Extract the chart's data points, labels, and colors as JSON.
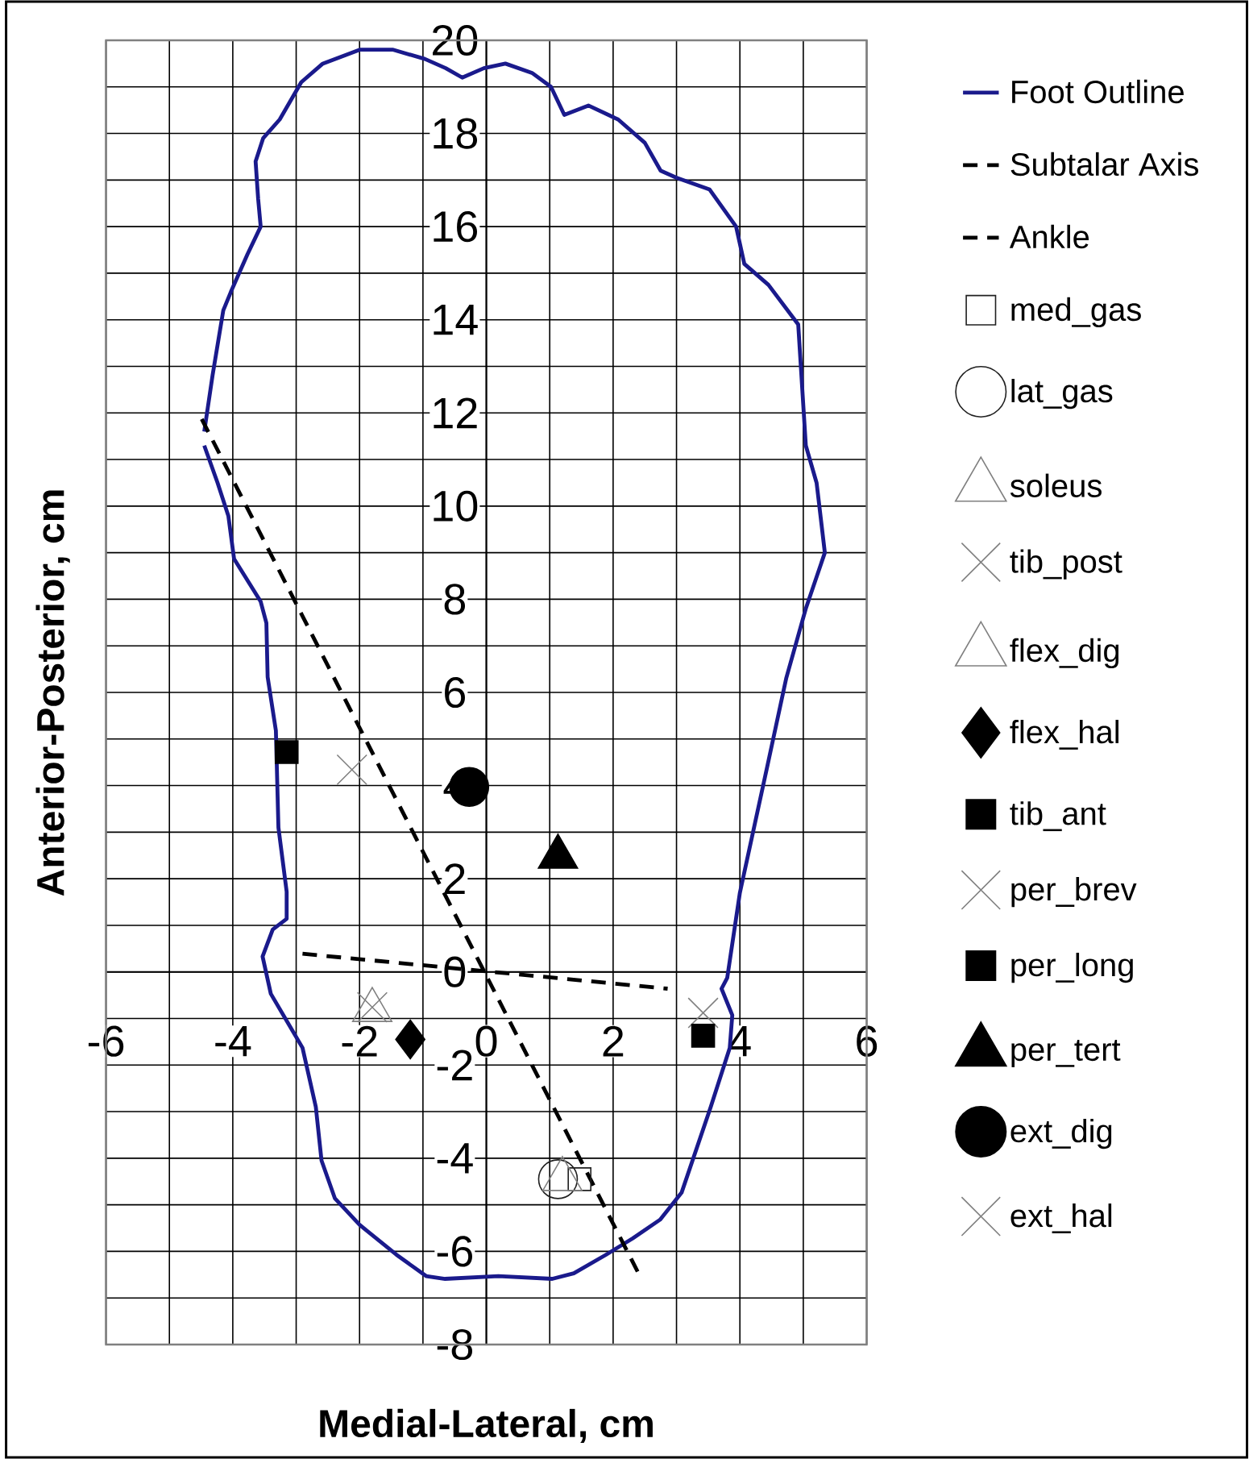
{
  "chart_data": {
    "type": "scatter",
    "xlabel": "Medial-Lateral, cm",
    "ylabel": "Anterior-Posterior, cm",
    "xlim": [
      -6,
      6
    ],
    "ylim": [
      -8,
      20
    ],
    "xticks": [
      -6,
      {
        "value": -5,
        "label": null
      },
      -4,
      {
        "value": -3,
        "label": null
      },
      -2,
      {
        "value": -1,
        "label": null
      },
      0,
      {
        "value": 1,
        "label": null
      },
      2,
      {
        "value": 3,
        "label": null
      },
      4,
      {
        "value": 5,
        "label": null
      },
      6
    ],
    "yticks": [
      -8,
      {
        "value": -7,
        "label": null
      },
      -6,
      {
        "value": -5,
        "label": null
      },
      -4,
      {
        "value": -3,
        "label": null
      },
      -2,
      {
        "value": -1,
        "label": null
      },
      0,
      {
        "value": 1,
        "label": null
      },
      2,
      {
        "value": 3,
        "label": null
      },
      4,
      {
        "value": 5,
        "label": null
      },
      6,
      {
        "value": 7,
        "label": null
      },
      8,
      {
        "value": 9,
        "label": null
      },
      10,
      {
        "value": 11,
        "label": null
      },
      12,
      {
        "value": 13,
        "label": null
      },
      14,
      {
        "value": 15,
        "label": null
      },
      16,
      {
        "value": 17,
        "label": null
      },
      18,
      {
        "value": 19,
        "label": null
      },
      20
    ],
    "grid": true,
    "legend": "right",
    "series": [
      {
        "name": "Foot Outline",
        "type": "line",
        "color": "#1a1a8c",
        "line_style": "solid",
        "marker": "none",
        "x": [
          -4.45,
          -4.32,
          -4.15,
          -4.03,
          -3.77,
          -3.56,
          -3.6,
          -3.64,
          -3.52,
          -3.26,
          -2.92,
          -2.58,
          -1.99,
          -1.48,
          -0.97,
          -0.64,
          -0.38,
          -0.04,
          0.3,
          0.72,
          1.02,
          1.23,
          1.61,
          2.08,
          2.5,
          2.75,
          3.0,
          3.52,
          3.94,
          4.07,
          4.45,
          4.92,
          5.04,
          5.21,
          5.34,
          5.04,
          4.73,
          4.43,
          4.0,
          3.8,
          3.71,
          3.88,
          3.84,
          3.54,
          3.08,
          2.74,
          2.31,
          1.89,
          1.38,
          1.04,
          0.19,
          -0.65,
          -0.95,
          -1.42,
          -2.0,
          -2.39,
          -2.6,
          -2.69,
          -2.9,
          -3.4,
          -3.53,
          -3.37,
          -3.15,
          -3.15,
          -3.28,
          -3.32,
          -3.45,
          -3.47,
          -3.56,
          -3.98,
          -4.07,
          -4.24,
          -4.45
        ],
        "values": [
          11.6,
          12.8,
          14.2,
          14.6,
          15.4,
          16.0,
          16.6,
          17.4,
          17.9,
          18.3,
          19.1,
          19.5,
          19.8,
          19.8,
          19.6,
          19.4,
          19.2,
          19.4,
          19.5,
          19.3,
          19.0,
          18.4,
          18.6,
          18.3,
          17.8,
          17.2,
          17.05,
          16.8,
          16.0,
          15.2,
          14.75,
          13.9,
          11.3,
          10.5,
          9.0,
          7.8,
          6.3,
          4.4,
          1.7,
          -0.13,
          -0.36,
          -0.93,
          -1.63,
          -2.9,
          -4.74,
          -5.32,
          -5.72,
          -6.07,
          -6.47,
          -6.59,
          -6.53,
          -6.59,
          -6.53,
          -6.07,
          -5.43,
          -4.86,
          -4.05,
          -2.9,
          -1.63,
          -0.47,
          0.33,
          0.91,
          1.14,
          1.72,
          3.1,
          5.18,
          6.33,
          7.49,
          7.95,
          8.87,
          9.79,
          10.5,
          11.3
        ]
      },
      {
        "name": "Subtalar Axis",
        "type": "line",
        "color": "#000000",
        "line_style": "dashed",
        "marker": "none",
        "x": [
          -4.49,
          2.4
        ],
        "values": [
          11.87,
          -6.47
        ]
      },
      {
        "name": "Ankle",
        "type": "line",
        "color": "#000000",
        "line_style": "dashed",
        "marker": "none",
        "x": [
          -2.9,
          2.86
        ],
        "values": [
          0.39,
          -0.36
        ]
      },
      {
        "name": "med_gas",
        "type": "scatter",
        "color": "#202020",
        "marker": "square",
        "x": [
          1.47
        ],
        "values": [
          -4.45
        ]
      },
      {
        "name": "lat_gas",
        "type": "scatter",
        "color": "#202020",
        "marker": "circle",
        "x": [
          1.13
        ],
        "values": [
          -4.45
        ]
      },
      {
        "name": "soleus",
        "type": "scatter",
        "color": "#808080",
        "marker": "triangle",
        "x": [
          1.2
        ],
        "values": [
          -4.45
        ]
      },
      {
        "name": "tib_post",
        "type": "scatter",
        "color": "#808080",
        "marker": "cross",
        "x": [
          -1.8
        ],
        "values": [
          -0.76
        ]
      },
      {
        "name": "flex_dig",
        "type": "scatter",
        "color": "#808080",
        "marker": "triangle",
        "x": [
          -1.8
        ],
        "values": [
          -0.82
        ]
      },
      {
        "name": "flex_hal",
        "type": "scatter",
        "color": "#000000",
        "marker": "diamond",
        "x": [
          -1.2
        ],
        "values": [
          -1.45
        ]
      },
      {
        "name": "tib_ant",
        "type": "scatter",
        "color": "#000000",
        "marker": "square",
        "x": [
          -3.15
        ],
        "values": [
          4.72
        ]
      },
      {
        "name": "per_brev",
        "type": "scatter",
        "color": "#808080",
        "marker": "cross",
        "x": [
          3.42
        ],
        "values": [
          -0.88
        ]
      },
      {
        "name": "per_long",
        "type": "scatter",
        "color": "#000000",
        "marker": "square",
        "x": [
          3.42
        ],
        "values": [
          -1.37
        ]
      },
      {
        "name": "per_tert",
        "type": "scatter",
        "color": "#000000",
        "marker": "triangle",
        "x": [
          1.13
        ],
        "values": [
          2.47
        ]
      },
      {
        "name": "ext_dig",
        "type": "scatter",
        "color": "#000000",
        "marker": "circle",
        "x": [
          -0.27
        ],
        "values": [
          3.97
        ]
      },
      {
        "name": "ext_hal",
        "type": "scatter",
        "color": "#808080",
        "marker": "cross",
        "x": [
          -2.12
        ],
        "values": [
          4.34
        ]
      }
    ]
  }
}
